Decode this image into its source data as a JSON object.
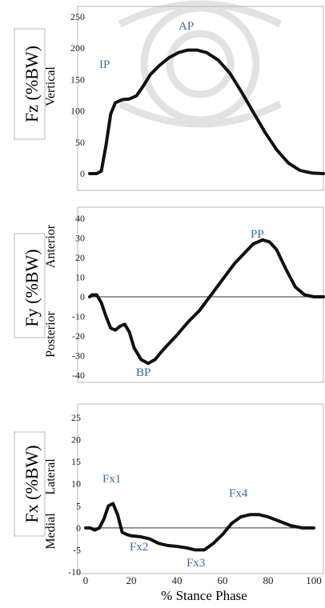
{
  "xaxis": {
    "label": "% Stance Phase",
    "ticks": [
      "0",
      "20",
      "40",
      "60",
      "80",
      "100"
    ]
  },
  "colors": {
    "curve": "#111111",
    "frame": "#b8b8b8",
    "annotation": "#3c6da0",
    "axis_text": "#222222",
    "watermark": "#e2e2e2"
  },
  "panels": [
    {
      "ylabel": "Fz (%BW)",
      "direction_top": "Vertical",
      "direction_bottom": "",
      "yticks": [
        "250",
        "200",
        "150",
        "100",
        "50",
        "0"
      ],
      "annotations": [
        "IP",
        "AP"
      ]
    },
    {
      "ylabel": "Fy (%BW)",
      "direction_top": "Anterior",
      "direction_bottom": "Posterior",
      "yticks": [
        "40",
        "30",
        "20",
        "10",
        "0",
        "-10",
        "-20",
        "-30",
        "-40"
      ],
      "annotations": [
        "PP",
        "BP"
      ]
    },
    {
      "ylabel": "Fx (%BW)",
      "direction_top": "Lateral",
      "direction_bottom": "Medial",
      "yticks": [
        "25",
        "20",
        "15",
        "10",
        "5",
        "0",
        "-5",
        "-10"
      ],
      "annotations": [
        "Fx1",
        "Fx2",
        "Fx3",
        "Fx4"
      ]
    }
  ],
  "chart_data": [
    {
      "type": "line",
      "xlabel": "",
      "ylabel": "Fz (%BW)",
      "xlim": [
        0,
        100
      ],
      "ylim": [
        0,
        250
      ],
      "x": [
        0,
        3,
        5,
        7,
        9,
        11,
        14,
        17,
        20,
        23,
        26,
        30,
        34,
        38,
        42,
        46,
        50,
        55,
        60,
        65,
        70,
        75,
        80,
        85,
        90,
        95,
        100
      ],
      "y": [
        0,
        0,
        4,
        45,
        95,
        113,
        118,
        119,
        124,
        140,
        158,
        173,
        185,
        193,
        197,
        197,
        193,
        181,
        160,
        130,
        98,
        66,
        38,
        17,
        5,
        1,
        0
      ]
    },
    {
      "type": "line",
      "xlabel": "",
      "ylabel": "Fy (%BW)",
      "xlim": [
        0,
        100
      ],
      "ylim": [
        -40,
        40
      ],
      "x": [
        0,
        1,
        3,
        5,
        7,
        9,
        11,
        13,
        15,
        17,
        19,
        22,
        25,
        28,
        30,
        33,
        37,
        42,
        47,
        52,
        57,
        62,
        66,
        70,
        74,
        77,
        80,
        84,
        88,
        92,
        96,
        100
      ],
      "y": [
        0,
        1,
        1,
        -3,
        -10,
        -16,
        -17,
        -15,
        -14,
        -18,
        -26,
        -32,
        -34,
        -32,
        -29,
        -25,
        -20,
        -13,
        -7,
        1,
        9,
        17,
        22,
        27,
        29,
        28,
        24,
        14,
        5,
        1,
        0,
        0
      ],
      "zero_line": true
    },
    {
      "type": "line",
      "xlabel": "% Stance Phase",
      "ylabel": "Fx (%BW)",
      "xlim": [
        0,
        100
      ],
      "ylim": [
        -10,
        25
      ],
      "x": [
        0,
        2,
        4,
        6,
        8,
        10,
        12,
        14,
        16,
        18,
        20,
        24,
        28,
        32,
        36,
        40,
        44,
        48,
        52,
        56,
        60,
        64,
        68,
        72,
        76,
        80,
        85,
        90,
        95,
        100
      ],
      "y": [
        0,
        0,
        -0.5,
        0,
        2,
        5,
        5.5,
        3,
        -1,
        -1.5,
        -1.8,
        -2,
        -2.5,
        -3.5,
        -4,
        -4.2,
        -4.5,
        -5,
        -5,
        -3.5,
        -1.5,
        1,
        2.5,
        3,
        3,
        2.5,
        1.5,
        0.5,
        0,
        0
      ],
      "zero_line": true
    }
  ]
}
